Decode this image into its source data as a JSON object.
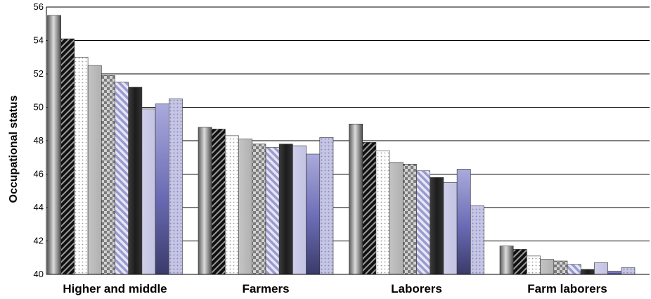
{
  "chart_data": {
    "type": "bar",
    "title": "",
    "xlabel": "",
    "ylabel": "Occupational status",
    "ylim": [
      40,
      56
    ],
    "yticks": [
      40,
      42,
      44,
      46,
      48,
      50,
      52,
      54,
      56
    ],
    "grid": true,
    "legend": "none",
    "categories": [
      "Higher and middle",
      "Farmers",
      "Laborers",
      "Farm laborers"
    ],
    "series": [
      {
        "values": [
          55.5,
          48.8,
          49.0,
          41.7
        ],
        "color": "#8c8c8c"
      },
      {
        "values": [
          54.1,
          48.7,
          47.9,
          41.5
        ],
        "color": "#1a1a1a"
      },
      {
        "values": [
          53.0,
          48.3,
          47.4,
          41.1
        ],
        "color": "#ffffff"
      },
      {
        "values": [
          52.5,
          48.1,
          46.7,
          40.9
        ],
        "color": "#b4b4b4"
      },
      {
        "values": [
          51.9,
          47.8,
          46.6,
          40.8
        ],
        "color": "#8c8c8c"
      },
      {
        "values": [
          51.5,
          47.6,
          46.2,
          40.6
        ],
        "color": "#c8c8e6"
      },
      {
        "values": [
          51.2,
          47.8,
          45.8,
          40.3
        ],
        "color": "#2a2a2a"
      },
      {
        "values": [
          49.9,
          47.7,
          45.5,
          40.7
        ],
        "color": "#c8c8e6"
      },
      {
        "values": [
          50.2,
          47.2,
          46.3,
          40.2
        ],
        "color": "#7e7ec0"
      },
      {
        "values": [
          50.5,
          48.2,
          44.1,
          40.4
        ],
        "color": "#aaaad6"
      }
    ]
  }
}
